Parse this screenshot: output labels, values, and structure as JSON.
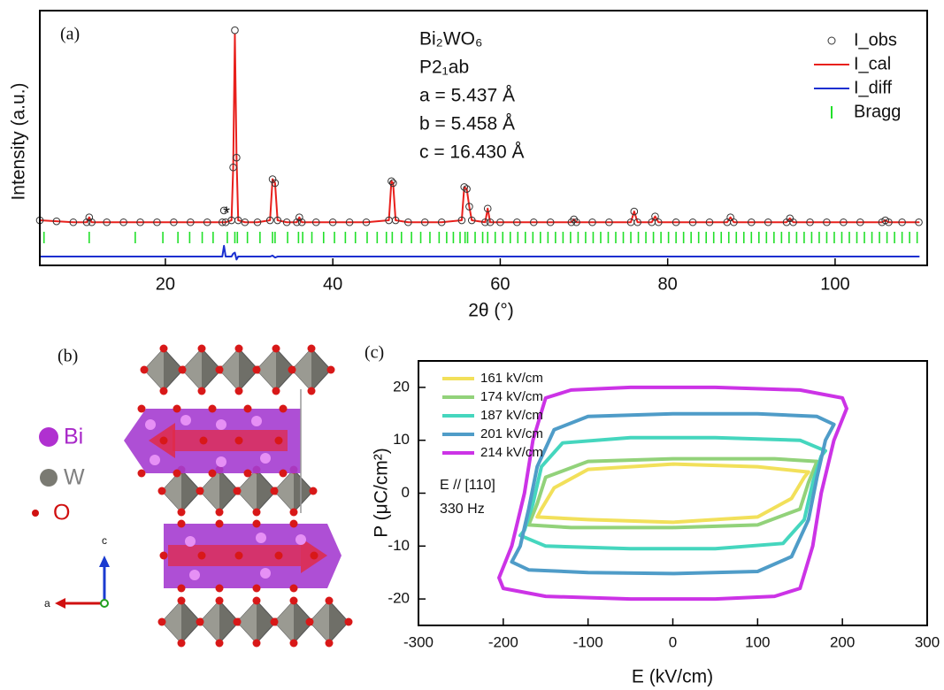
{
  "chart_data": [
    {
      "type": "line",
      "label": "(a)",
      "x_label": "2θ (°)",
      "y_label": "Intensity (a.u.)",
      "xlim": [
        5,
        111
      ],
      "ylim": [
        -0.2,
        1.1
      ],
      "xticks": [
        20,
        40,
        60,
        80,
        100
      ],
      "grid": false,
      "legend": "upper right",
      "impurity_mark": "*",
      "annotations": [
        "Bi₂WO₆",
        "P2₁ab",
        "a = 5.437 Å",
        "b = 5.458 Å",
        "c = 16.430 Å"
      ],
      "x": [
        5,
        7,
        9,
        10.6,
        10.9,
        11.2,
        13,
        15,
        17,
        19,
        21,
        23,
        25,
        26.8,
        27,
        27.2,
        27.9,
        28.1,
        28.3,
        28.5,
        28.7,
        29.5,
        31,
        32.5,
        32.8,
        33.1,
        33.4,
        34.5,
        35.7,
        36,
        36.3,
        38,
        40,
        42,
        44,
        46.7,
        47,
        47.2,
        47.5,
        49,
        51,
        53,
        55.4,
        55.7,
        56,
        56.3,
        56.6,
        58.2,
        58.5,
        58.8,
        60,
        62,
        64,
        66,
        68.5,
        68.8,
        69.1,
        71,
        73,
        75.6,
        76,
        76.4,
        78.1,
        78.5,
        78.9,
        81,
        83,
        85,
        87.1,
        87.5,
        87.9,
        90,
        92,
        94.2,
        94.6,
        95,
        97,
        99,
        101,
        103,
        105.6,
        106,
        106.4,
        108,
        110
      ],
      "series": [
        {
          "name": "I_obs",
          "style": "markers",
          "color": "#333333",
          "values": [
            0.03,
            0.025,
            0.02,
            0.02,
            0.045,
            0.02,
            0.02,
            0.02,
            0.02,
            0.02,
            0.02,
            0.02,
            0.02,
            0.02,
            0.08,
            0.02,
            0.03,
            0.3,
            1.0,
            0.35,
            0.03,
            0.02,
            0.02,
            0.03,
            0.24,
            0.22,
            0.03,
            0.02,
            0.02,
            0.045,
            0.02,
            0.02,
            0.02,
            0.02,
            0.02,
            0.03,
            0.23,
            0.22,
            0.03,
            0.02,
            0.02,
            0.02,
            0.03,
            0.2,
            0.19,
            0.1,
            0.03,
            0.02,
            0.09,
            0.02,
            0.02,
            0.02,
            0.02,
            0.02,
            0.02,
            0.035,
            0.02,
            0.02,
            0.02,
            0.02,
            0.075,
            0.02,
            0.02,
            0.05,
            0.02,
            0.02,
            0.02,
            0.02,
            0.02,
            0.045,
            0.02,
            0.02,
            0.02,
            0.02,
            0.04,
            0.02,
            0.02,
            0.02,
            0.02,
            0.02,
            0.02,
            0.03,
            0.02,
            0.02,
            0.02
          ]
        },
        {
          "name": "I_cal",
          "style": "line",
          "color": "#e8201c",
          "values": [
            0.03,
            0.025,
            0.02,
            0.02,
            0.045,
            0.02,
            0.02,
            0.02,
            0.02,
            0.02,
            0.02,
            0.02,
            0.02,
            0.02,
            0.02,
            0.02,
            0.03,
            0.3,
            0.98,
            0.35,
            0.03,
            0.02,
            0.02,
            0.03,
            0.24,
            0.22,
            0.03,
            0.02,
            0.02,
            0.045,
            0.02,
            0.02,
            0.02,
            0.02,
            0.02,
            0.03,
            0.23,
            0.22,
            0.03,
            0.02,
            0.02,
            0.02,
            0.03,
            0.2,
            0.19,
            0.1,
            0.03,
            0.02,
            0.09,
            0.02,
            0.02,
            0.02,
            0.02,
            0.02,
            0.02,
            0.035,
            0.02,
            0.02,
            0.02,
            0.02,
            0.075,
            0.02,
            0.02,
            0.05,
            0.02,
            0.02,
            0.02,
            0.02,
            0.02,
            0.045,
            0.02,
            0.02,
            0.02,
            0.02,
            0.04,
            0.02,
            0.02,
            0.02,
            0.02,
            0.02,
            0.02,
            0.03,
            0.02,
            0.02,
            0.02
          ]
        },
        {
          "name": "I_diff",
          "style": "line",
          "color": "#1a2fd0",
          "values": [
            -0.155,
            -0.155,
            -0.155,
            -0.155,
            -0.155,
            -0.155,
            -0.155,
            -0.155,
            -0.155,
            -0.155,
            -0.155,
            -0.155,
            -0.155,
            -0.155,
            -0.1,
            -0.155,
            -0.155,
            -0.14,
            -0.135,
            -0.17,
            -0.155,
            -0.155,
            -0.155,
            -0.155,
            -0.15,
            -0.16,
            -0.155,
            -0.155,
            -0.155,
            -0.155,
            -0.155,
            -0.155,
            -0.155,
            -0.155,
            -0.155,
            -0.155,
            -0.155,
            -0.155,
            -0.155,
            -0.155,
            -0.155,
            -0.155,
            -0.155,
            -0.155,
            -0.155,
            -0.155,
            -0.155,
            -0.155,
            -0.155,
            -0.155,
            -0.155,
            -0.155,
            -0.155,
            -0.155,
            -0.155,
            -0.155,
            -0.155,
            -0.155,
            -0.155,
            -0.155,
            -0.155,
            -0.155,
            -0.155,
            -0.155,
            -0.155,
            -0.155,
            -0.155,
            -0.155,
            -0.155,
            -0.155,
            -0.155,
            -0.155,
            -0.155,
            -0.155,
            -0.155,
            -0.155,
            -0.155,
            -0.155,
            -0.155,
            -0.155,
            -0.155,
            -0.155,
            -0.155,
            -0.155,
            -0.155
          ]
        },
        {
          "name": "Bragg",
          "style": "ticks",
          "color": "#22e02a",
          "x": [
            5.5,
            10.9,
            16.4,
            19.7,
            21.5,
            22.9,
            24.4,
            25.7,
            27.4,
            28.3,
            28.6,
            29.8,
            31.3,
            32.8,
            33.1,
            34.6,
            35.9,
            36.4,
            37.5,
            38.9,
            40.2,
            41.5,
            42.7,
            44.1,
            45.3,
            46.4,
            47.1,
            48.2,
            49.4,
            50.5,
            51.6,
            52.7,
            53.6,
            54.4,
            55.2,
            55.8,
            56.1,
            57,
            57.9,
            58.5,
            59.4,
            60.3,
            61.2,
            62.1,
            63,
            63.9,
            64.8,
            65.7,
            66.6,
            67.5,
            68.4,
            69.3,
            70.2,
            71.1,
            72,
            72.9,
            73.8,
            74.7,
            75.6,
            76.5,
            77.4,
            78.3,
            79.2,
            80.1,
            81,
            81.9,
            82.8,
            83.7,
            84.6,
            85.5,
            86.4,
            87.3,
            88.2,
            89.1,
            90,
            90.9,
            91.8,
            92.7,
            93.6,
            94.5,
            95.4,
            96.3,
            97.2,
            98.1,
            99,
            99.9,
            100.8,
            101.7,
            102.6,
            103.5,
            104.4,
            105.3,
            106.2,
            107.1,
            108,
            108.9,
            109.8
          ]
        }
      ]
    },
    {
      "type": "line",
      "label": "(c)",
      "x_label": "E (kV/cm)",
      "y_label": "P (μC/cm²)",
      "xlim": [
        -300,
        300
      ],
      "ylim": [
        -25,
        25
      ],
      "xticks": [
        -300,
        -200,
        -100,
        0,
        100,
        200,
        300
      ],
      "yticks": [
        -20,
        -10,
        0,
        10,
        20
      ],
      "grid": false,
      "legend": "upper left",
      "annotations": [
        "E // [110]",
        "330 Hz"
      ],
      "series": [
        {
          "name": "161 kV/cm",
          "style": "line",
          "color": "#f2e05a",
          "x": [
            160,
            100,
            0,
            -100,
            -140,
            -155,
            -160,
            -100,
            0,
            100,
            140,
            155,
            160
          ],
          "values": [
            4,
            5,
            5.5,
            4.5,
            1,
            -3,
            -4.5,
            -5,
            -5.5,
            -4.5,
            -1,
            3,
            4
          ]
        },
        {
          "name": "174 kV/cm",
          "style": "line",
          "color": "#92d27a",
          "x": [
            170,
            120,
            0,
            -100,
            -150,
            -160,
            -170,
            -120,
            0,
            100,
            150,
            160,
            170
          ],
          "values": [
            6,
            6.5,
            6.5,
            6,
            3,
            -2,
            -6,
            -6.5,
            -6.5,
            -6,
            -3,
            2,
            6
          ]
        },
        {
          "name": "187 kV/cm",
          "style": "line",
          "color": "#45d6be",
          "x": [
            180,
            150,
            50,
            -50,
            -130,
            -155,
            -165,
            -175,
            -180,
            -150,
            -50,
            50,
            130,
            155,
            165,
            175,
            180
          ],
          "values": [
            8,
            10,
            10.5,
            10.5,
            9.5,
            5,
            -2,
            -7,
            -8,
            -10,
            -10.5,
            -10.5,
            -9.5,
            -5,
            2,
            7,
            8
          ]
        },
        {
          "name": "201 kV/cm",
          "style": "line",
          "color": "#4f9cc8",
          "x": [
            190,
            170,
            100,
            0,
            -100,
            -140,
            -160,
            -170,
            -180,
            -190,
            -170,
            -100,
            0,
            100,
            140,
            160,
            170,
            180,
            190
          ],
          "values": [
            13,
            14.5,
            15,
            15,
            14.5,
            12,
            5,
            -3,
            -10,
            -13,
            -14.5,
            -15,
            -15.2,
            -14.8,
            -12,
            -5,
            3,
            10,
            13
          ]
        },
        {
          "name": "214 kV/cm",
          "style": "line",
          "color": "#cc33e6",
          "x": [
            205,
            200,
            150,
            50,
            -50,
            -120,
            -150,
            -165,
            -175,
            -190,
            -205,
            -200,
            -150,
            -50,
            50,
            120,
            150,
            165,
            175,
            190,
            205
          ],
          "values": [
            16,
            18,
            19.5,
            20,
            20,
            19.5,
            18,
            10,
            0,
            -10,
            -16,
            -18,
            -19.5,
            -20,
            -20,
            -19.5,
            -18,
            -10,
            0,
            10,
            16
          ]
        }
      ]
    }
  ],
  "structure": {
    "label": "(b)",
    "legend": [
      "Bi",
      "W",
      "O"
    ],
    "axes": [
      "a",
      "c"
    ]
  }
}
